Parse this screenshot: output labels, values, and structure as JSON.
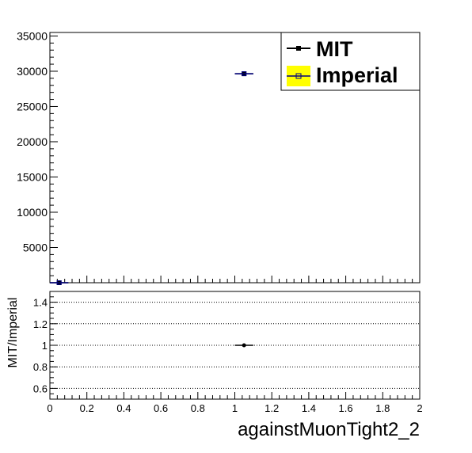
{
  "chart_data": [
    {
      "type": "scatter",
      "title": "",
      "xlabel": "",
      "ylabel": "",
      "xlim": [
        0,
        2
      ],
      "ylim": [
        0,
        35500
      ],
      "yticks": [
        5000,
        10000,
        15000,
        20000,
        25000,
        30000,
        35000
      ],
      "ytick_labels": [
        "5000",
        "10000",
        "15000",
        "20000",
        "25000",
        "30000",
        "35000"
      ],
      "legend_position": "top-right",
      "series": [
        {
          "name": "MIT",
          "color": "#000000",
          "marker": "filled-square",
          "points": [
            {
              "x": 1.05,
              "y": 29650,
              "xerr": 0.05
            },
            {
              "x": 0.05,
              "y": 0,
              "xerr": 0.05
            }
          ]
        },
        {
          "name": "Imperial",
          "color": "#000080",
          "fill": "#ffff00",
          "marker": "open-square",
          "points": [
            {
              "x": 1.05,
              "y": 29650,
              "xerr": 0.05
            },
            {
              "x": 0.05,
              "y": 0,
              "xerr": 0.05
            }
          ]
        }
      ]
    },
    {
      "type": "scatter",
      "title": "",
      "xlabel": "againstMuonTight2_2",
      "ylabel": "MIT/Imperial",
      "xlim": [
        0,
        2
      ],
      "ylim": [
        0.5,
        1.5
      ],
      "xticks": [
        0,
        0.2,
        0.4,
        0.6,
        0.8,
        1,
        1.2,
        1.4,
        1.6,
        1.8,
        2
      ],
      "xtick_labels": [
        "0",
        "0.2",
        "0.4",
        "0.6",
        "0.8",
        "1",
        "1.2",
        "1.4",
        "1.6",
        "1.8",
        "2"
      ],
      "yticks": [
        0.6,
        0.8,
        1,
        1.2,
        1.4
      ],
      "ytick_labels": [
        "0.6",
        "0.8",
        "1",
        "1.2",
        "1.4"
      ],
      "grid": "horizontal-dotted",
      "series": [
        {
          "name": "",
          "color": "#000000",
          "marker": "filled-circle",
          "points": [
            {
              "x": 1.05,
              "y": 1.0,
              "xerr": 0.05
            }
          ]
        }
      ]
    }
  ]
}
